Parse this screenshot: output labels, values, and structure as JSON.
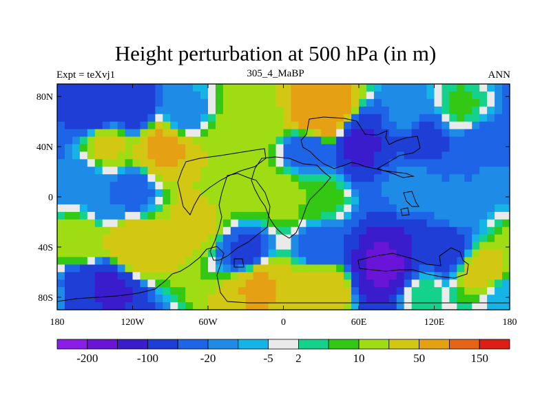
{
  "chart_data": {
    "type": "heatmap",
    "title": "Height perturbation at 500 hPa (in m)",
    "subtitle_left": "Expt = teXvj1",
    "subtitle_center": "305_4_MaBP",
    "subtitle_right": "ANN",
    "x_ticks": [
      "180",
      "120W",
      "60W",
      "0",
      "60E",
      "120E",
      "180"
    ],
    "x_tick_values": [
      -180,
      -120,
      -60,
      0,
      60,
      120,
      180
    ],
    "y_ticks": [
      "80N",
      "40N",
      "0",
      "40S",
      "80S"
    ],
    "y_tick_values": [
      80,
      40,
      0,
      -40,
      -80
    ],
    "xlim": [
      -180,
      180
    ],
    "ylim": [
      -90,
      90
    ],
    "grid": false,
    "colorbar": {
      "placement": "bottom",
      "colors": [
        "#8a1ee6",
        "#6a14d8",
        "#3a1ccc",
        "#1e3ed6",
        "#1e64e6",
        "#1e8ce6",
        "#14b4e6",
        "#eaeaea",
        "#14d28c",
        "#32c814",
        "#a0dc14",
        "#d2c814",
        "#e6a014",
        "#e66414",
        "#dc1e14"
      ],
      "labels": [
        "-200",
        "-100",
        "-20",
        "-5",
        "2",
        "10",
        "50",
        "150"
      ],
      "label_edges": [
        1,
        3,
        5,
        7,
        8,
        10,
        12,
        14
      ]
    },
    "field_features": [
      {
        "lon": -150,
        "lat": 68,
        "value": -40
      },
      {
        "lon": -120,
        "lat": 68,
        "value": -30
      },
      {
        "lon": -80,
        "lat": 64,
        "value": -10
      },
      {
        "lon": 30,
        "lat": 64,
        "value": 100
      },
      {
        "lon": -20,
        "lat": 66,
        "value": 15
      },
      {
        "lon": 140,
        "lat": 72,
        "value": 6
      },
      {
        "lon": 100,
        "lat": 62,
        "value": -6
      },
      {
        "lon": -95,
        "lat": 40,
        "value": 60
      },
      {
        "lon": -140,
        "lat": 42,
        "value": 25
      },
      {
        "lon": -40,
        "lat": 40,
        "value": 20
      },
      {
        "lon": 20,
        "lat": 38,
        "value": -20
      },
      {
        "lon": 60,
        "lat": 42,
        "value": -60
      },
      {
        "lon": 110,
        "lat": 48,
        "value": -30
      },
      {
        "lon": 160,
        "lat": 36,
        "value": -20
      },
      {
        "lon": 165,
        "lat": 20,
        "value": -8
      },
      {
        "lon": -160,
        "lat": 15,
        "value": -8
      },
      {
        "lon": -120,
        "lat": 5,
        "value": -15
      },
      {
        "lon": -140,
        "lat": -5,
        "value": -10
      },
      {
        "lon": -40,
        "lat": 5,
        "value": 12
      },
      {
        "lon": 0,
        "lat": 0,
        "value": 14
      },
      {
        "lon": 30,
        "lat": 0,
        "value": 8
      },
      {
        "lon": -70,
        "lat": -20,
        "value": 25
      },
      {
        "lon": 100,
        "lat": 10,
        "value": -6
      },
      {
        "lon": 140,
        "lat": -10,
        "value": -5
      },
      {
        "lon": -120,
        "lat": -40,
        "value": 50
      },
      {
        "lon": -160,
        "lat": -35,
        "value": 20
      },
      {
        "lon": -30,
        "lat": -45,
        "value": -25
      },
      {
        "lon": 30,
        "lat": -42,
        "value": -20
      },
      {
        "lon": 80,
        "lat": -55,
        "value": -110
      },
      {
        "lon": 130,
        "lat": -40,
        "value": -30
      },
      {
        "lon": 160,
        "lat": -58,
        "value": 30
      },
      {
        "lon": -140,
        "lat": -72,
        "value": -60
      },
      {
        "lon": -160,
        "lat": -76,
        "value": -40
      },
      {
        "lon": -20,
        "lat": -70,
        "value": 55
      },
      {
        "lon": 30,
        "lat": -70,
        "value": 45
      },
      {
        "lon": 110,
        "lat": -78,
        "value": 4
      },
      {
        "lon": 175,
        "lat": -80,
        "value": -4
      }
    ]
  }
}
